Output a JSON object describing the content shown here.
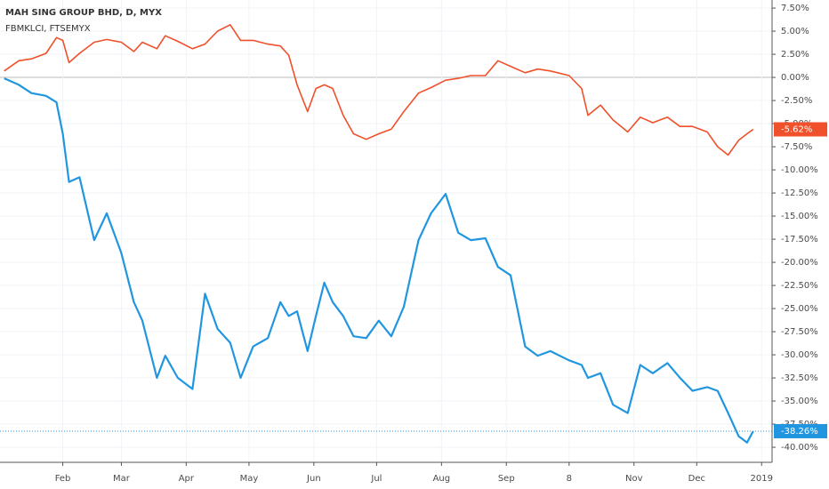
{
  "chart_data": {
    "type": "line",
    "title": "MAH SING GROUP BHD, D, MYX",
    "subtitle": "FBMKLCI, FTSEMYX",
    "x": [
      3,
      10,
      16,
      23,
      28,
      31,
      34,
      39,
      46,
      52,
      59,
      65,
      69,
      76,
      80,
      86,
      93,
      99,
      105,
      111,
      116,
      122,
      129,
      135,
      139,
      143,
      148,
      152,
      156,
      160,
      165,
      170,
      176,
      182,
      188,
      194,
      201,
      207,
      214,
      220,
      226,
      233,
      239,
      245,
      252,
      258,
      264,
      273,
      279,
      282,
      288,
      294,
      301,
      307,
      313,
      320,
      326,
      332,
      339,
      344,
      349,
      354,
      358,
      361
    ],
    "series": [
      {
        "color": "#f0502a",
        "last_label": "-5.62%",
        "values": [
          0.7,
          1.8,
          2.0,
          2.6,
          4.3,
          4.0,
          1.6,
          2.6,
          3.8,
          4.1,
          3.8,
          2.8,
          3.8,
          3.1,
          4.5,
          3.9,
          3.1,
          3.6,
          5.0,
          5.7,
          4.0,
          4.0,
          3.6,
          3.4,
          2.4,
          -0.8,
          -3.7,
          -1.2,
          -0.8,
          -1.2,
          -4.1,
          -6.1,
          -6.7,
          -6.1,
          -5.6,
          -3.7,
          -1.7,
          -1.1,
          -0.3,
          -0.1,
          0.2,
          0.2,
          1.8,
          1.2,
          0.5,
          0.9,
          0.7,
          0.2,
          -1.2,
          -4.1,
          -3.0,
          -4.6,
          -5.9,
          -4.3,
          -4.9,
          -4.3,
          -5.3,
          -5.3,
          -5.9,
          -7.5,
          -8.4,
          -6.8,
          -6.1,
          -5.62
        ]
      },
      {
        "color": "#2196e0",
        "last_label": "-38.26%",
        "values": [
          -0.1,
          -0.8,
          -1.7,
          -2.0,
          -2.7,
          -6.1,
          -11.3,
          -10.8,
          -17.6,
          -14.7,
          -19.0,
          -24.3,
          -26.3,
          -32.5,
          -30.1,
          -32.5,
          -33.7,
          -23.4,
          -27.2,
          -28.7,
          -32.5,
          -29.1,
          -28.2,
          -24.3,
          -25.8,
          -25.3,
          -29.6,
          -25.8,
          -22.2,
          -24.3,
          -25.8,
          -28.0,
          -28.2,
          -26.3,
          -28.0,
          -24.8,
          -17.6,
          -14.7,
          -12.6,
          -16.8,
          -17.6,
          -17.4,
          -20.5,
          -21.4,
          -29.1,
          -30.1,
          -29.6,
          -30.6,
          -31.1,
          -32.5,
          -32.0,
          -35.4,
          -36.3,
          -31.1,
          -32.0,
          -30.9,
          -32.5,
          -33.9,
          -33.5,
          -33.9,
          -36.3,
          -38.8,
          -39.5,
          -38.26
        ]
      }
    ],
    "xlim": [
      1,
      370
    ],
    "ylim": [
      -41.63,
      8.37
    ],
    "xticks": [
      {
        "value": 31,
        "label": "Feb"
      },
      {
        "value": 59,
        "label": "Mar"
      },
      {
        "value": 90,
        "label": "Apr"
      },
      {
        "value": 120,
        "label": "May"
      },
      {
        "value": 151,
        "label": "Jun"
      },
      {
        "value": 181,
        "label": "Jul"
      },
      {
        "value": 212,
        "label": "Aug"
      },
      {
        "value": 243,
        "label": "Sep"
      },
      {
        "value": 273,
        "label": "8"
      },
      {
        "value": 304,
        "label": "Nov"
      },
      {
        "value": 334,
        "label": "Dec"
      },
      {
        "value": 365,
        "label": "2019"
      }
    ],
    "yticks": [
      {
        "value": 7.5,
        "label": "7.50%"
      },
      {
        "value": 5,
        "label": "5.00%"
      },
      {
        "value": 2.5,
        "label": "2.50%"
      },
      {
        "value": 0,
        "label": "0.00%"
      },
      {
        "value": -2.5,
        "label": "-2.50%"
      },
      {
        "value": -5,
        "label": "-5.00%"
      },
      {
        "value": -7.5,
        "label": "-7.50%"
      },
      {
        "value": -10,
        "label": "-10.00%"
      },
      {
        "value": -12.5,
        "label": "-12.50%"
      },
      {
        "value": -15,
        "label": "-15.00%"
      },
      {
        "value": -17.5,
        "label": "-17.50%"
      },
      {
        "value": -20,
        "label": "-20.00%"
      },
      {
        "value": -22.5,
        "label": "-22.50%"
      },
      {
        "value": -25,
        "label": "-25.00%"
      },
      {
        "value": -27.5,
        "label": "-27.50%"
      },
      {
        "value": -30,
        "label": "-30.00%"
      },
      {
        "value": -32.5,
        "label": "-32.50%"
      },
      {
        "value": -35,
        "label": "-35.00%"
      },
      {
        "value": -37.5,
        "label": "-37.50%"
      },
      {
        "value": -40,
        "label": "-40.00%"
      }
    ],
    "grid": true
  }
}
